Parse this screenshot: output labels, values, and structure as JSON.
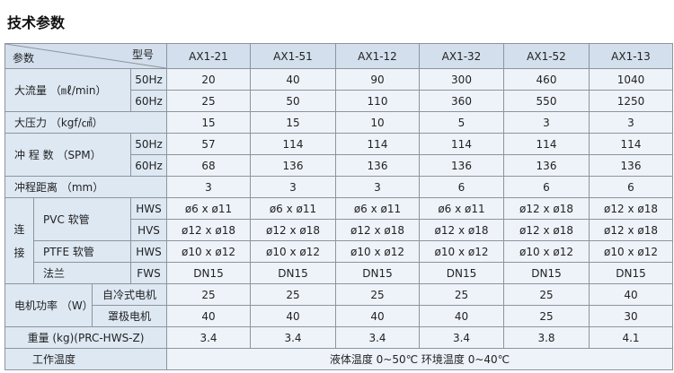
{
  "title": "技术参数",
  "header": {
    "param_label": "参数",
    "model_label": "型号",
    "models": [
      "AX1-21",
      "AX1-51",
      "AX1-12",
      "AX1-32",
      "AX1-52",
      "AX1-13"
    ]
  },
  "flow": {
    "label": "大流量 （㎖/min）",
    "rows": [
      {
        "sub": "50Hz",
        "values": [
          "20",
          "40",
          "90",
          "300",
          "460",
          "1040"
        ]
      },
      {
        "sub": "60Hz",
        "values": [
          "25",
          "50",
          "110",
          "360",
          "550",
          "1250"
        ]
      }
    ]
  },
  "pressure": {
    "label": "大压力 （kgf/㎠）",
    "values": [
      "15",
      "15",
      "10",
      "5",
      "3",
      "3"
    ]
  },
  "spm": {
    "label": "冲 程 数 （SPM）",
    "rows": [
      {
        "sub": "50Hz",
        "values": [
          "57",
          "114",
          "114",
          "114",
          "114",
          "114"
        ]
      },
      {
        "sub": "60Hz",
        "values": [
          "68",
          "136",
          "136",
          "136",
          "136",
          "136"
        ]
      }
    ]
  },
  "stroke": {
    "label": "冲程距离 （mm）",
    "values": [
      "3",
      "3",
      "3",
      "6",
      "6",
      "6"
    ]
  },
  "connection": {
    "label_1": "连",
    "label_2": "接",
    "pvc": {
      "label": "PVC 软管",
      "rows": [
        {
          "sub": "HWS",
          "values": [
            "ø6 x ø11",
            "ø6 x ø11",
            "ø6 x ø11",
            "ø6 x ø11",
            "ø12 x ø18",
            "ø12 x ø18"
          ]
        },
        {
          "sub": "HVS",
          "values": [
            "ø12 x ø18",
            "ø12 x ø18",
            "ø12 x ø18",
            "ø12 x ø18",
            "ø12 x ø18",
            "ø12 x ø18"
          ]
        }
      ]
    },
    "ptfe": {
      "label": "PTFE 软管",
      "sub": "HWS",
      "values": [
        "ø10 x ø12",
        "ø10 x ø12",
        "ø10 x ø12",
        "ø10 x ø12",
        "ø10 x ø12",
        "ø10 x ø12"
      ]
    },
    "flange": {
      "label": "法兰",
      "sub": "FWS",
      "values": [
        "DN15",
        "DN15",
        "DN15",
        "DN15",
        "DN15",
        "DN15"
      ]
    }
  },
  "motor": {
    "label": "电机功率 （W）",
    "rows": [
      {
        "sub": "自冷式电机",
        "values": [
          "25",
          "25",
          "25",
          "25",
          "25",
          "40"
        ]
      },
      {
        "sub": "罩极电机",
        "values": [
          "40",
          "40",
          "40",
          "40",
          "25",
          "30"
        ]
      }
    ]
  },
  "weight": {
    "label": "重量 (kg)(PRC-HWS-Z)",
    "values": [
      "3.4",
      "3.4",
      "3.4",
      "3.4",
      "3.8",
      "4.1"
    ]
  },
  "temp": {
    "label": "工作温度",
    "value": "液体温度 0~50℃ 环境温度 0~40℃"
  }
}
